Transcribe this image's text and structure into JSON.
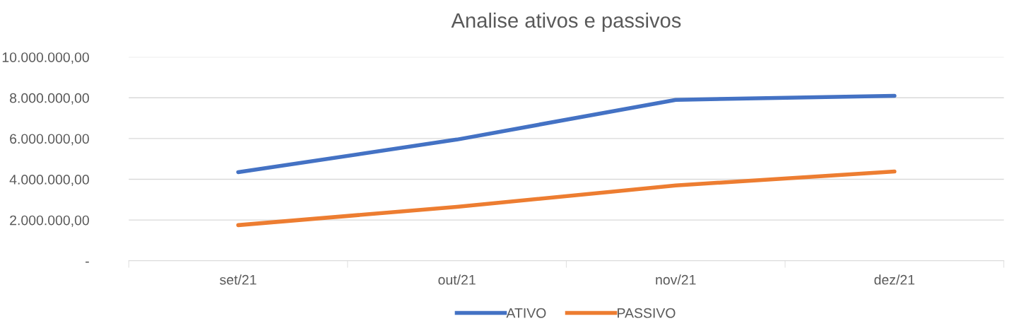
{
  "chart_data": {
    "type": "line",
    "title": "Analise ativos e passivos",
    "categories": [
      "set/21",
      "out/21",
      "nov/21",
      "dez/21"
    ],
    "series": [
      {
        "name": "ATIVO",
        "color": "#4472c4",
        "values": [
          4350000,
          5950000,
          7900000,
          8100000
        ]
      },
      {
        "name": "PASSIVO",
        "color": "#ed7d31",
        "values": [
          1750000,
          2650000,
          3700000,
          4380000
        ]
      }
    ],
    "ylim": [
      0,
      10000000
    ],
    "yticks": [
      {
        "value": 0,
        "label": "-"
      },
      {
        "value": 2000000,
        "label": "2.000.000,00"
      },
      {
        "value": 4000000,
        "label": "4.000.000,00"
      },
      {
        "value": 6000000,
        "label": "6.000.000,00"
      },
      {
        "value": 8000000,
        "label": "8.000.000,00"
      },
      {
        "value": 10000000,
        "label": "10.000.000,00"
      }
    ],
    "grid": "y",
    "legend": "bottom",
    "marker": "none",
    "line_style": "solid"
  }
}
